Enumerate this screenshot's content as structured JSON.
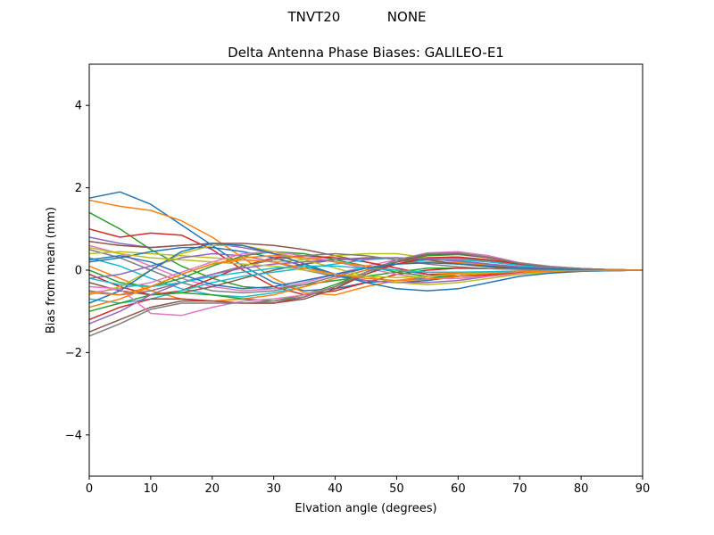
{
  "suptitle": "TNVT20           NONE",
  "chart_data": {
    "type": "line",
    "title": "Delta Antenna Phase Biases: GALILEO-E1",
    "xlabel": "Elvation angle (degrees)",
    "ylabel": "Bias from mean (mm)",
    "xlim": [
      0,
      90
    ],
    "ylim": [
      -5,
      5
    ],
    "xticks": [
      0,
      10,
      20,
      30,
      40,
      50,
      60,
      70,
      80,
      90
    ],
    "yticks": [
      -4,
      -2,
      0,
      2,
      4
    ],
    "ytick_labels": [
      "−4",
      "−2",
      "0",
      "2",
      "4"
    ],
    "grid": false,
    "legend": "none",
    "colors": [
      "#1f77b4",
      "#ff7f0e",
      "#2ca02c",
      "#d62728",
      "#9467bd",
      "#8c564b",
      "#e377c2",
      "#7f7f7f",
      "#bcbd22",
      "#17becf"
    ],
    "x": [
      0,
      5,
      10,
      15,
      20,
      25,
      30,
      35,
      40,
      45,
      50,
      55,
      60,
      65,
      70,
      75,
      80,
      85,
      90
    ],
    "series": [
      {
        "values": [
          1.75,
          1.9,
          1.6,
          1.1,
          0.6,
          0.1,
          -0.3,
          -0.5,
          -0.45,
          -0.3,
          -0.25,
          -0.2,
          -0.15,
          -0.1,
          -0.05,
          -0.03,
          -0.02,
          -0.01,
          0
        ]
      },
      {
        "values": [
          1.7,
          1.55,
          1.45,
          1.2,
          0.8,
          0.3,
          -0.2,
          -0.55,
          -0.6,
          -0.4,
          -0.25,
          -0.15,
          -0.1,
          -0.08,
          -0.05,
          -0.03,
          -0.02,
          -0.01,
          0
        ]
      },
      {
        "values": [
          1.4,
          1.0,
          0.5,
          0.1,
          -0.2,
          -0.4,
          -0.45,
          -0.35,
          -0.25,
          -0.15,
          -0.05,
          0.05,
          0.05,
          0.04,
          0.03,
          0.02,
          0.01,
          0.0,
          0
        ]
      },
      {
        "values": [
          1.0,
          0.8,
          0.9,
          0.85,
          0.5,
          0.0,
          -0.4,
          -0.6,
          -0.5,
          -0.3,
          -0.1,
          0.0,
          0.05,
          0.04,
          0.03,
          0.02,
          0.01,
          0.0,
          0
        ]
      },
      {
        "values": [
          0.8,
          0.65,
          0.55,
          0.6,
          0.65,
          0.55,
          0.4,
          0.3,
          0.2,
          0.1,
          0.0,
          -0.1,
          -0.1,
          -0.08,
          -0.05,
          -0.03,
          -0.02,
          -0.01,
          0
        ]
      },
      {
        "values": [
          0.7,
          0.6,
          0.55,
          0.6,
          0.65,
          0.65,
          0.6,
          0.5,
          0.35,
          0.2,
          0.05,
          -0.1,
          -0.15,
          -0.12,
          -0.08,
          -0.05,
          -0.02,
          -0.01,
          0
        ]
      },
      {
        "values": [
          0.6,
          0.4,
          0.1,
          -0.2,
          -0.4,
          -0.5,
          -0.45,
          -0.3,
          -0.1,
          0.1,
          0.25,
          0.3,
          0.28,
          0.2,
          0.12,
          0.06,
          0.03,
          0.01,
          0
        ]
      },
      {
        "values": [
          0.5,
          0.3,
          0.0,
          -0.3,
          -0.5,
          -0.55,
          -0.5,
          -0.35,
          -0.15,
          0.05,
          0.2,
          0.3,
          0.3,
          0.22,
          0.14,
          0.08,
          0.04,
          0.01,
          0
        ]
      },
      {
        "values": [
          0.4,
          0.45,
          0.4,
          0.35,
          0.3,
          0.25,
          0.2,
          0.25,
          0.35,
          0.4,
          0.4,
          0.3,
          0.2,
          0.12,
          0.08,
          0.05,
          0.02,
          0.01,
          0
        ]
      },
      {
        "values": [
          0.3,
          0.1,
          -0.2,
          -0.45,
          -0.6,
          -0.65,
          -0.55,
          -0.4,
          -0.2,
          0.0,
          0.15,
          0.25,
          0.25,
          0.2,
          0.12,
          0.06,
          0.03,
          0.01,
          0
        ]
      },
      {
        "values": [
          0.2,
          0.3,
          0.45,
          0.55,
          0.55,
          0.45,
          0.3,
          0.1,
          -0.1,
          -0.25,
          -0.3,
          -0.25,
          -0.15,
          -0.08,
          -0.04,
          -0.02,
          -0.01,
          0.0,
          0
        ]
      },
      {
        "values": [
          0.1,
          -0.2,
          -0.5,
          -0.7,
          -0.75,
          -0.7,
          -0.6,
          -0.4,
          -0.2,
          0.0,
          0.15,
          0.2,
          0.18,
          0.12,
          0.07,
          0.04,
          0.02,
          0.01,
          0
        ]
      },
      {
        "values": [
          0.0,
          -0.3,
          -0.4,
          -0.2,
          0.1,
          0.35,
          0.45,
          0.4,
          0.25,
          0.1,
          -0.05,
          -0.15,
          -0.15,
          -0.1,
          -0.05,
          -0.03,
          -0.01,
          0.0,
          0
        ]
      },
      {
        "values": [
          -0.1,
          -0.4,
          -0.6,
          -0.5,
          -0.2,
          0.1,
          0.3,
          0.35,
          0.3,
          0.2,
          0.05,
          -0.1,
          -0.15,
          -0.12,
          -0.07,
          -0.04,
          -0.02,
          -0.01,
          0
        ]
      },
      {
        "values": [
          -0.2,
          -0.1,
          0.1,
          0.3,
          0.4,
          0.35,
          0.2,
          0.0,
          -0.15,
          -0.25,
          -0.3,
          -0.3,
          -0.25,
          -0.15,
          -0.08,
          -0.04,
          -0.02,
          -0.01,
          0
        ]
      },
      {
        "values": [
          -0.3,
          -0.5,
          -0.6,
          -0.55,
          -0.4,
          -0.2,
          0.0,
          0.15,
          0.25,
          0.3,
          0.3,
          0.25,
          0.15,
          0.08,
          0.04,
          0.02,
          0.01,
          0.0,
          0
        ]
      },
      {
        "values": [
          -0.4,
          -0.45,
          -0.3,
          -0.05,
          0.2,
          0.4,
          0.45,
          0.35,
          0.2,
          0.05,
          -0.1,
          -0.2,
          -0.2,
          -0.15,
          -0.08,
          -0.04,
          -0.02,
          -0.01,
          0
        ]
      },
      {
        "values": [
          -0.5,
          -0.6,
          -0.5,
          -0.3,
          -0.1,
          0.1,
          0.25,
          0.35,
          0.4,
          0.35,
          0.25,
          0.15,
          0.08,
          0.04,
          0.02,
          0.01,
          0.0,
          0.0,
          0
        ]
      },
      {
        "values": [
          -0.6,
          -0.4,
          0.0,
          0.4,
          0.6,
          0.6,
          0.45,
          0.25,
          0.05,
          -0.15,
          -0.3,
          -0.35,
          -0.3,
          -0.2,
          -0.1,
          -0.05,
          -0.02,
          -0.01,
          0
        ]
      },
      {
        "values": [
          -0.7,
          -0.8,
          -0.7,
          -0.5,
          -0.3,
          -0.15,
          -0.05,
          0.05,
          0.15,
          0.25,
          0.3,
          0.28,
          0.22,
          0.15,
          0.08,
          0.04,
          0.02,
          0.01,
          0
        ]
      },
      {
        "values": [
          -0.8,
          -0.5,
          0.0,
          0.45,
          0.65,
          0.6,
          0.4,
          0.15,
          -0.1,
          -0.3,
          -0.45,
          -0.5,
          -0.45,
          -0.3,
          -0.15,
          -0.07,
          -0.03,
          -0.01,
          0
        ]
      },
      {
        "values": [
          -0.9,
          -0.7,
          -0.4,
          -0.1,
          0.15,
          0.3,
          0.35,
          0.3,
          0.2,
          0.1,
          0.0,
          -0.05,
          -0.08,
          -0.06,
          -0.04,
          -0.02,
          -0.01,
          0.0,
          0
        ]
      },
      {
        "values": [
          -1.0,
          -0.8,
          -0.6,
          -0.55,
          -0.6,
          -0.7,
          -0.75,
          -0.6,
          -0.35,
          -0.05,
          0.2,
          0.35,
          0.38,
          0.3,
          0.18,
          0.09,
          0.04,
          0.01,
          0
        ]
      },
      {
        "values": [
          -1.2,
          -0.9,
          -0.7,
          -0.7,
          -0.75,
          -0.8,
          -0.8,
          -0.65,
          -0.4,
          -0.1,
          0.15,
          0.3,
          0.32,
          0.25,
          0.15,
          0.08,
          0.04,
          0.01,
          0
        ]
      },
      {
        "values": [
          -1.3,
          -1.0,
          -0.6,
          -0.3,
          -0.1,
          0.05,
          0.15,
          0.2,
          0.25,
          0.28,
          0.3,
          0.28,
          0.22,
          0.15,
          0.08,
          0.04,
          0.02,
          0.01,
          0
        ]
      },
      {
        "values": [
          -1.5,
          -1.2,
          -0.9,
          -0.75,
          -0.75,
          -0.8,
          -0.8,
          -0.7,
          -0.45,
          -0.1,
          0.2,
          0.38,
          0.4,
          0.3,
          0.16,
          0.08,
          0.04,
          0.01,
          0
        ]
      },
      {
        "values": [
          -0.55,
          -0.45,
          -1.05,
          -1.1,
          -0.9,
          -0.75,
          -0.7,
          -0.6,
          -0.4,
          -0.05,
          0.25,
          0.42,
          0.45,
          0.35,
          0.18,
          0.09,
          0.04,
          0.01,
          0
        ]
      },
      {
        "values": [
          -1.6,
          -1.3,
          -0.95,
          -0.8,
          -0.8,
          -0.8,
          -0.75,
          -0.65,
          -0.4,
          -0.05,
          0.25,
          0.4,
          0.42,
          0.32,
          0.17,
          0.08,
          0.04,
          0.01,
          0
        ]
      },
      {
        "values": [
          0.55,
          0.4,
          0.3,
          0.25,
          0.2,
          0.15,
          0.1,
          0.0,
          -0.1,
          -0.15,
          -0.18,
          -0.15,
          -0.1,
          -0.06,
          -0.03,
          -0.02,
          -0.01,
          0.0,
          0
        ]
      },
      {
        "values": [
          -0.2,
          -0.35,
          -0.4,
          -0.3,
          -0.15,
          -0.05,
          0.05,
          0.1,
          0.1,
          0.05,
          0.0,
          -0.05,
          -0.05,
          -0.04,
          -0.02,
          -0.01,
          0.0,
          0.0,
          0
        ]
      },
      {
        "values": [
          0.25,
          0.35,
          0.2,
          -0.1,
          -0.35,
          -0.45,
          -0.4,
          -0.25,
          -0.1,
          0.05,
          0.15,
          0.18,
          0.15,
          0.1,
          0.05,
          0.03,
          0.01,
          0.0,
          0
        ]
      },
      {
        "values": [
          -0.55,
          -0.6,
          -0.4,
          -0.1,
          0.15,
          0.25,
          0.2,
          0.05,
          -0.1,
          -0.2,
          -0.25,
          -0.22,
          -0.15,
          -0.08,
          -0.04,
          -0.02,
          -0.01,
          0.0,
          0
        ]
      }
    ]
  }
}
